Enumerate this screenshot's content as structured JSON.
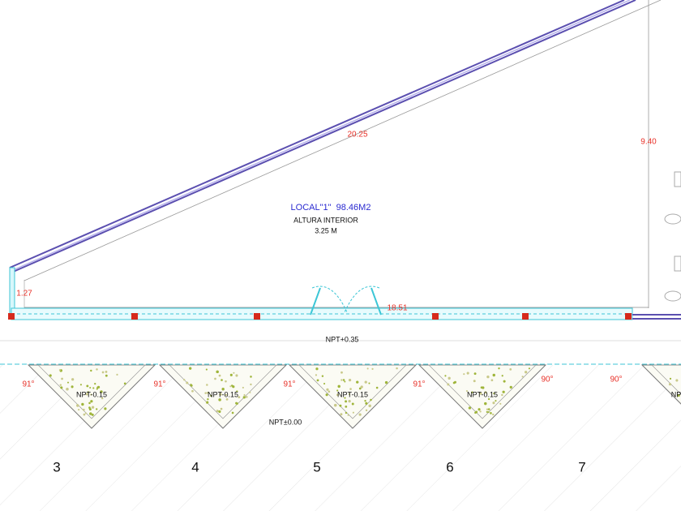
{
  "room": {
    "name": "LOCAL\"1\"  98.46M2",
    "height_label": "ALTURA INTERIOR",
    "height": "3.25 M"
  },
  "dimensions": {
    "diagonal": "20.25",
    "right": "9.40",
    "left": "1.27",
    "bottom": "18.51"
  },
  "levels": {
    "walkway": "NPT+0.35",
    "ground": "NPT±0.00"
  },
  "planters": [
    {
      "label": "NPT-0.15",
      "angle": "91°"
    },
    {
      "label": "NPT-0.15",
      "angle": "91°"
    },
    {
      "label": "NPT-0.15",
      "angle": "91°"
    },
    {
      "label": "NPT-0.15",
      "angle": "91°"
    },
    {
      "label": "NP"
    }
  ],
  "corner_angles": [
    "90°",
    "90°"
  ],
  "axes": [
    "3",
    "4",
    "5",
    "6",
    "7"
  ]
}
